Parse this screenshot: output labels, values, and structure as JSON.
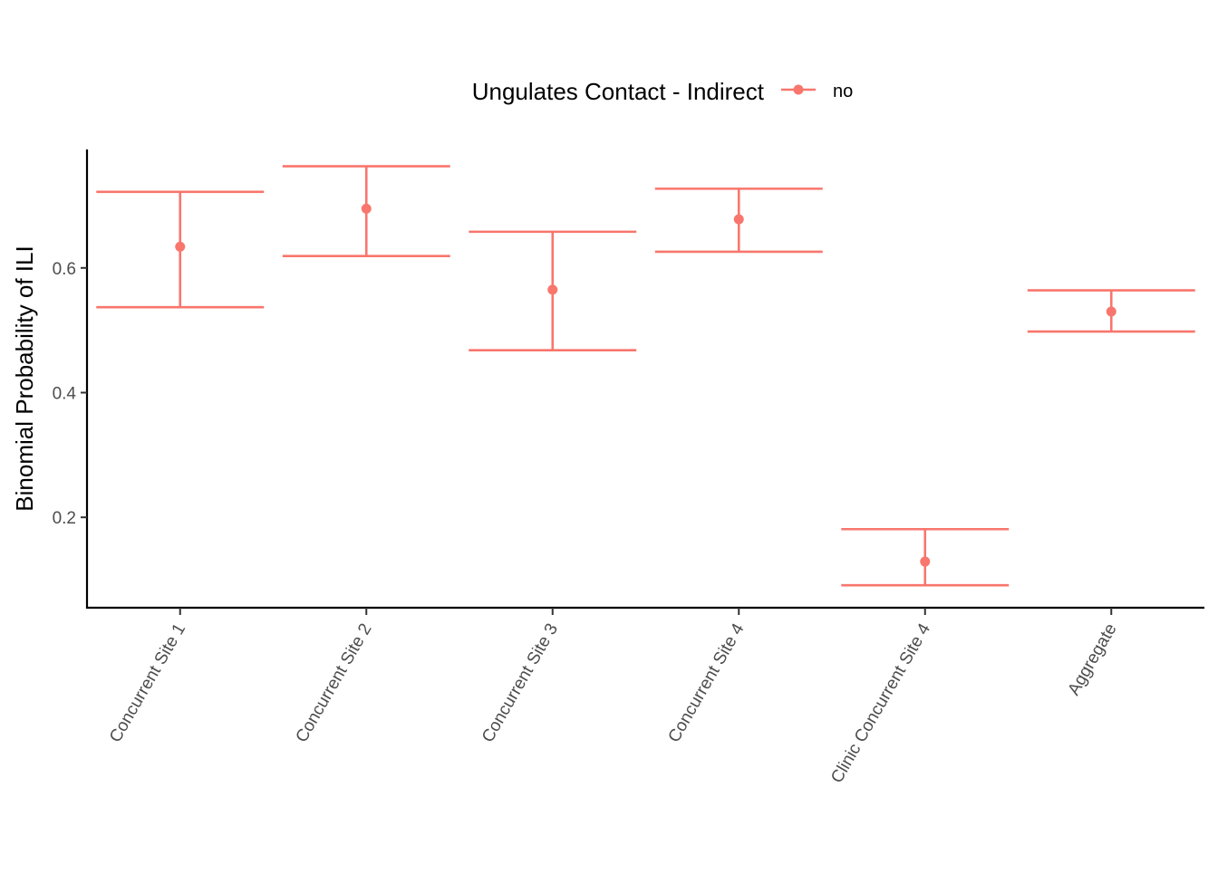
{
  "chart_data": {
    "type": "errorbar",
    "title": "",
    "xlabel": "",
    "ylabel": "Binomial Probability of ILI",
    "categories": [
      "Concurrent Site 1",
      "Concurrent Site 2",
      "Concurrent Site 3",
      "Concurrent Site 4",
      "Clinic Concurrent Site 4",
      "Aggregate"
    ],
    "series": [
      {
        "name": "no",
        "color": "#F8766D",
        "estimates": [
          0.634,
          0.695,
          0.565,
          0.678,
          0.129,
          0.53
        ],
        "lower": [
          0.537,
          0.619,
          0.468,
          0.626,
          0.091,
          0.498
        ],
        "upper": [
          0.722,
          0.763,
          0.658,
          0.727,
          0.181,
          0.564
        ]
      }
    ],
    "yticks": [
      0.2,
      0.4,
      0.6
    ],
    "ytick_labels": [
      "0.2",
      "0.4",
      "0.6"
    ],
    "ylim": [
      0.055,
      0.79
    ],
    "legend": {
      "title": "Ungulates Contact - Indirect",
      "position": "top"
    },
    "grid": false
  }
}
